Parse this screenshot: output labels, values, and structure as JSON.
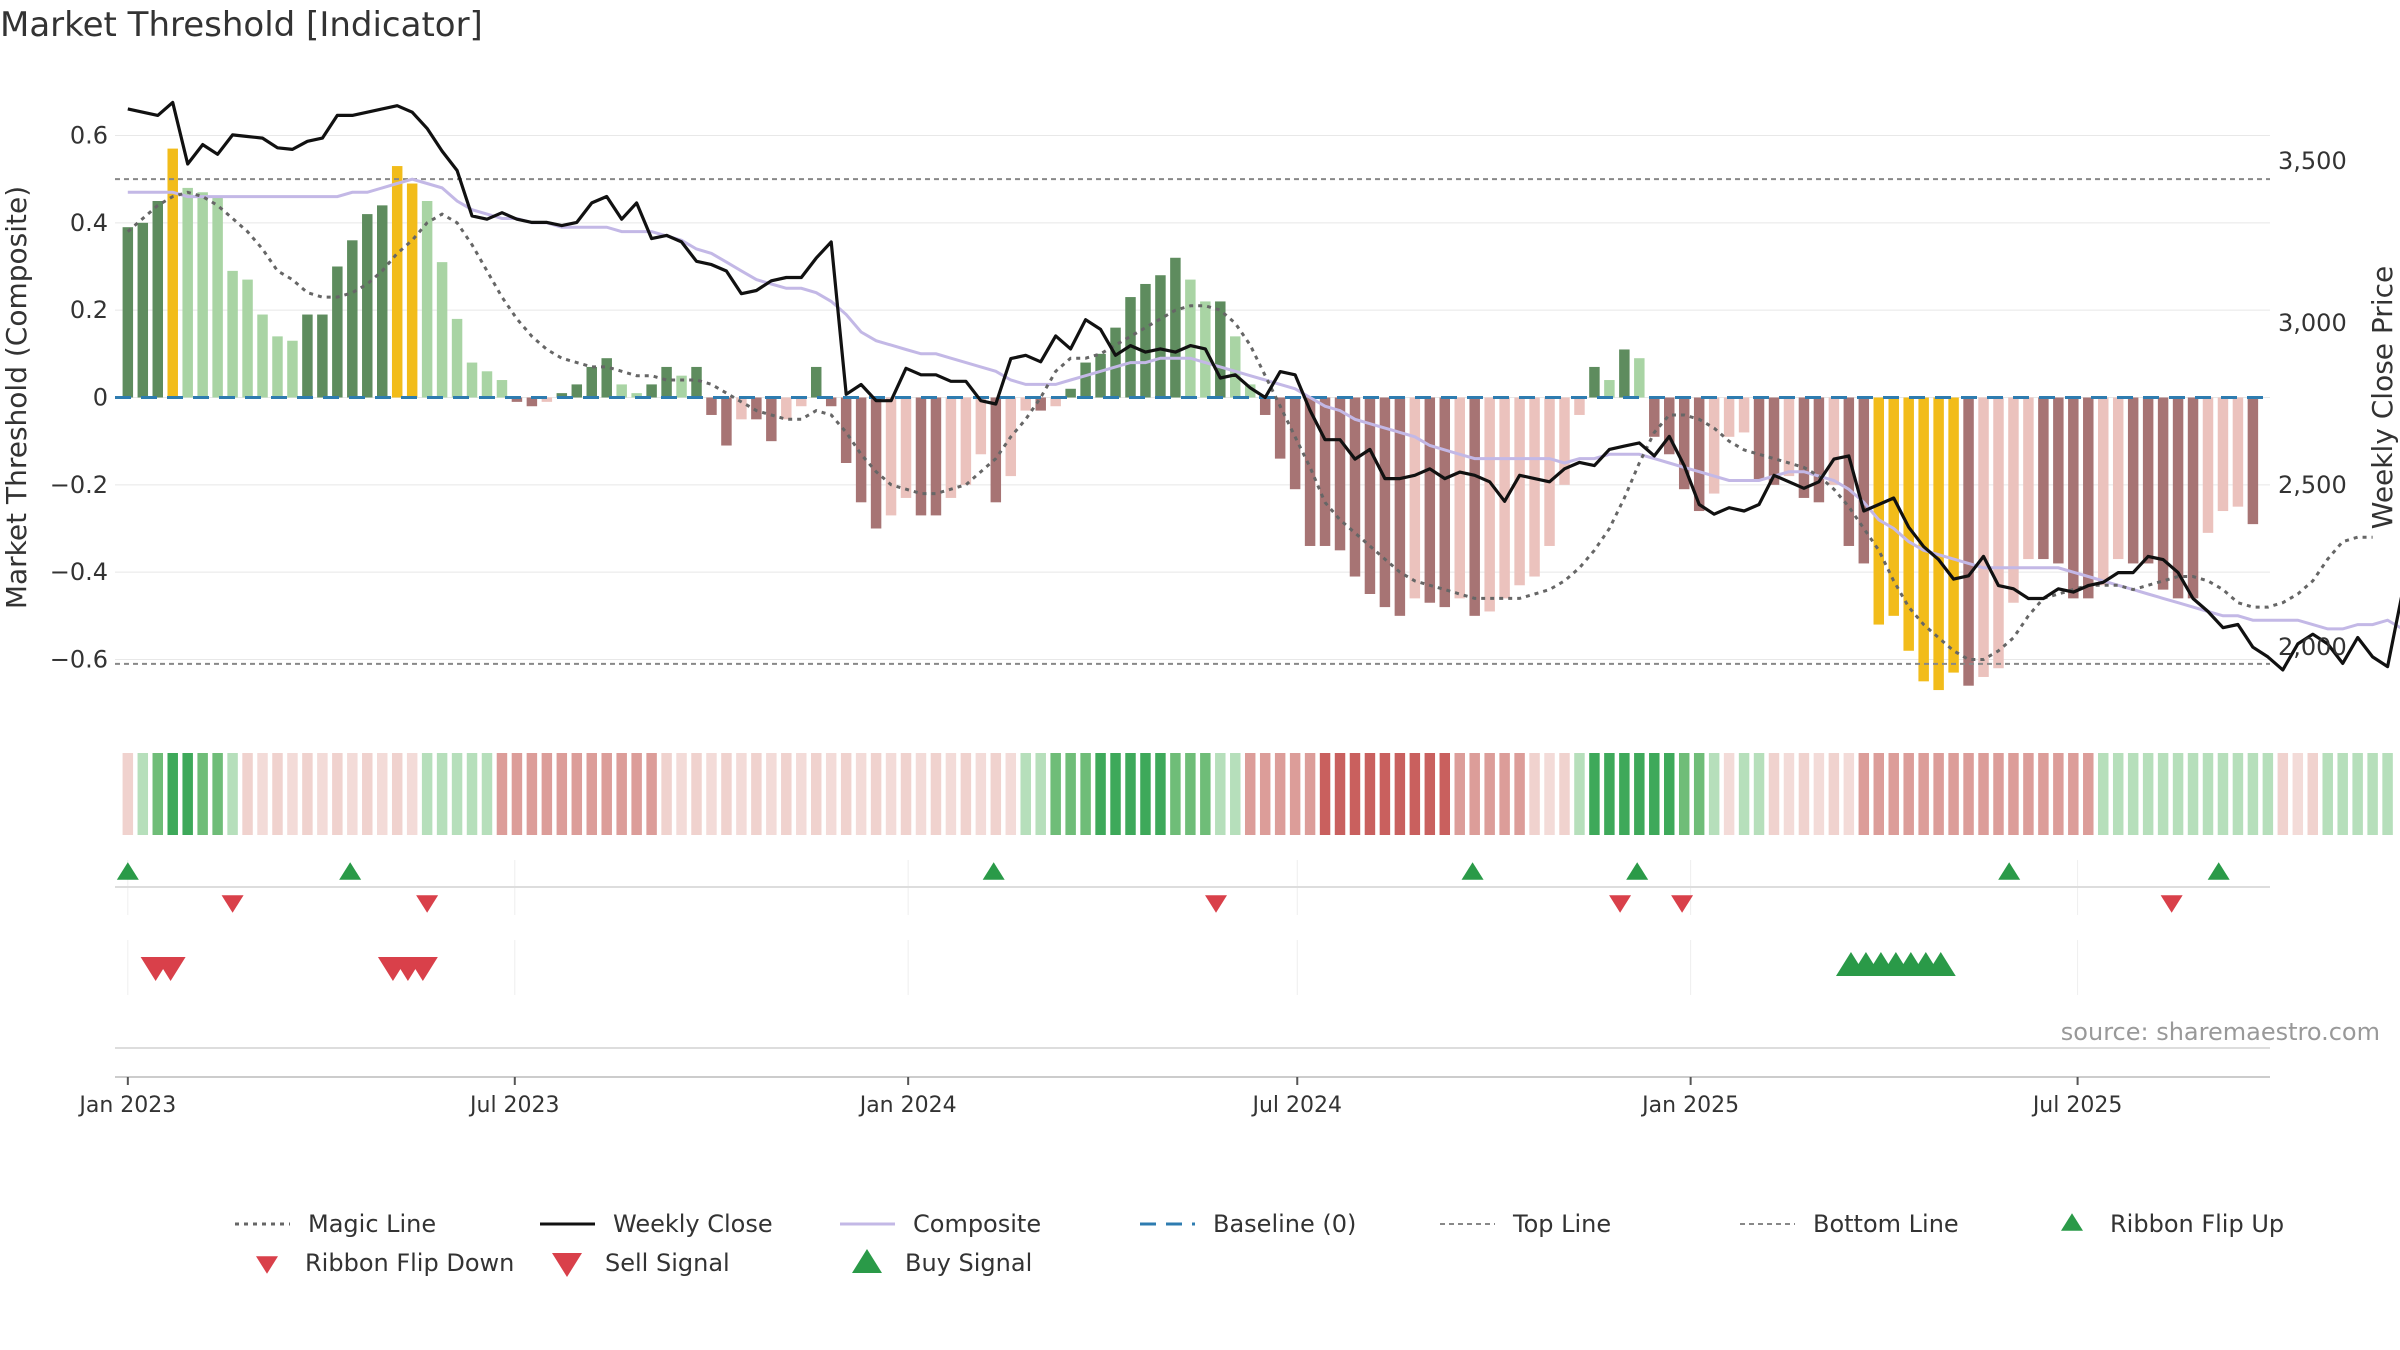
{
  "title": "Market Threshold [Indicator]",
  "source": "source: sharemaestro.com",
  "colors": {
    "hist_dark_pos": "#5e8c5e",
    "hist_light_pos": "#a9d4a4",
    "hist_dark_neg": "#a77474",
    "hist_light_neg": "#ebc2bd",
    "hist_extreme": "#f2bc1a",
    "close": "#111111",
    "composite": "#c3b8e6",
    "magic": "#666666",
    "baseline": "#2e7cb0",
    "threshold": "#888888",
    "buy": "#2a9a48",
    "sell": "#d9404a"
  },
  "chart_data": {
    "type": "bar",
    "x_axis": {
      "type": "date",
      "range": [
        "2022-12-26",
        "2025-09-29"
      ],
      "ticks": [
        {
          "date": "2023-01-01",
          "label": "Jan 2023"
        },
        {
          "date": "2023-07-01",
          "label": "Jul 2023"
        },
        {
          "date": "2024-01-01",
          "label": "Jan 2024"
        },
        {
          "date": "2024-07-01",
          "label": "Jul 2024"
        },
        {
          "date": "2025-01-01",
          "label": "Jan 2025"
        },
        {
          "date": "2025-07-01",
          "label": "Jul 2025"
        }
      ]
    },
    "weeks": {
      "start": "2023-01-01",
      "interval_days": 7
    },
    "y_left": {
      "label": "Market Threshold (Composite)",
      "range": [
        -0.75,
        0.75
      ],
      "ticks": [
        0.6,
        0.4,
        0.2,
        0,
        -0.2,
        -0.4,
        -0.6
      ],
      "tick_labels": [
        "0.6",
        "0.4",
        "0.2",
        "0",
        "−0.2",
        "−0.4",
        "−0.6"
      ]
    },
    "y_right": {
      "label": "Weekly Close Price",
      "range": [
        1760,
        3780
      ],
      "ticks": [
        3500,
        3000,
        2500,
        2000
      ],
      "tick_labels": [
        "3,500",
        "3,000",
        "2,500",
        "2,000"
      ]
    },
    "top_line": 0.5,
    "bottom_line": -0.61,
    "histogram": [
      0.39,
      0.4,
      0.45,
      0.57,
      0.48,
      0.47,
      0.46,
      0.29,
      0.27,
      0.19,
      0.14,
      0.13,
      0.19,
      0.19,
      0.3,
      0.36,
      0.42,
      0.44,
      0.53,
      0.49,
      0.45,
      0.31,
      0.18,
      0.08,
      0.06,
      0.04,
      -0.01,
      -0.02,
      -0.01,
      0.01,
      0.03,
      0.07,
      0.09,
      0.03,
      0.01,
      0.03,
      0.07,
      0.05,
      0.07,
      -0.04,
      -0.11,
      -0.05,
      -0.05,
      -0.1,
      -0.05,
      -0.02,
      0.07,
      -0.02,
      -0.15,
      -0.24,
      -0.3,
      -0.27,
      -0.23,
      -0.27,
      -0.27,
      -0.23,
      -0.2,
      -0.13,
      -0.24,
      -0.18,
      -0.03,
      -0.03,
      -0.02,
      0.02,
      0.08,
      0.1,
      0.16,
      0.23,
      0.26,
      0.28,
      0.32,
      0.27,
      0.22,
      0.22,
      0.14,
      0.03,
      -0.04,
      -0.14,
      -0.21,
      -0.34,
      -0.34,
      -0.35,
      -0.41,
      -0.45,
      -0.48,
      -0.5,
      -0.46,
      -0.47,
      -0.48,
      -0.46,
      -0.5,
      -0.49,
      -0.46,
      -0.43,
      -0.41,
      -0.34,
      -0.2,
      -0.04,
      0.07,
      0.04,
      0.11,
      0.09,
      -0.09,
      -0.13,
      -0.21,
      -0.26,
      -0.22,
      -0.09,
      -0.08,
      -0.19,
      -0.2,
      -0.18,
      -0.23,
      -0.24,
      -0.2,
      -0.34,
      -0.38,
      -0.52,
      -0.5,
      -0.58,
      -0.65,
      -0.67,
      -0.63,
      -0.66,
      -0.64,
      -0.62,
      -0.47,
      -0.37,
      -0.37,
      -0.38,
      -0.46,
      -0.46,
      -0.43,
      -0.37,
      -0.38,
      -0.38,
      -0.44,
      -0.46,
      -0.46,
      -0.31,
      -0.26,
      -0.25,
      -0.29
    ],
    "histogram_highlight_indices": [
      3,
      18,
      19,
      117,
      118,
      119,
      120,
      121,
      122
    ],
    "weekly_close": [
      3660,
      3650,
      3640,
      3680,
      3490,
      3550,
      3520,
      3580,
      3575,
      3570,
      3540,
      3535,
      3560,
      3570,
      3640,
      3640,
      3650,
      3660,
      3670,
      3650,
      3600,
      3530,
      3470,
      3330,
      3320,
      3340,
      3320,
      3310,
      3310,
      3300,
      3310,
      3370,
      3390,
      3320,
      3370,
      3260,
      3270,
      3250,
      3190,
      3180,
      3160,
      3090,
      3100,
      3130,
      3140,
      3140,
      3200,
      3250,
      2780,
      2810,
      2760,
      2760,
      2860,
      2840,
      2840,
      2820,
      2820,
      2760,
      2750,
      2890,
      2900,
      2880,
      2960,
      2920,
      3010,
      2980,
      2900,
      2930,
      2910,
      2920,
      2910,
      2930,
      2920,
      2830,
      2840,
      2800,
      2770,
      2850,
      2840,
      2730,
      2640,
      2640,
      2580,
      2610,
      2520,
      2520,
      2530,
      2550,
      2520,
      2540,
      2530,
      2510,
      2450,
      2530,
      2520,
      2510,
      2550,
      2570,
      2560,
      2610,
      2620,
      2630,
      2590,
      2650,
      2560,
      2440,
      2410,
      2430,
      2420,
      2440,
      2530,
      2510,
      2490,
      2510,
      2580,
      2590,
      2420,
      2440,
      2460,
      2370,
      2310,
      2270,
      2210,
      2220,
      2280,
      2190,
      2180,
      2150,
      2150,
      2180,
      2170,
      2190,
      2200,
      2230,
      2230,
      2280,
      2270,
      2230,
      2150,
      2110,
      2060,
      2070,
      2000,
      1970,
      1930,
      2010,
      2040,
      2010,
      1950,
      2030,
      1970,
      1940,
      2170,
      2180,
      2210,
      2200,
      2180,
      1920,
      1880
    ],
    "composite": [
      0.47,
      0.47,
      0.47,
      0.47,
      0.46,
      0.46,
      0.46,
      0.46,
      0.46,
      0.46,
      0.46,
      0.46,
      0.46,
      0.46,
      0.46,
      0.47,
      0.47,
      0.48,
      0.49,
      0.5,
      0.49,
      0.48,
      0.45,
      0.43,
      0.42,
      0.41,
      0.41,
      0.4,
      0.4,
      0.39,
      0.39,
      0.39,
      0.39,
      0.38,
      0.38,
      0.38,
      0.37,
      0.36,
      0.34,
      0.33,
      0.31,
      0.29,
      0.27,
      0.26,
      0.25,
      0.25,
      0.24,
      0.22,
      0.19,
      0.15,
      0.13,
      0.12,
      0.11,
      0.1,
      0.1,
      0.09,
      0.08,
      0.07,
      0.06,
      0.04,
      0.03,
      0.03,
      0.03,
      0.04,
      0.05,
      0.06,
      0.07,
      0.08,
      0.08,
      0.09,
      0.09,
      0.09,
      0.08,
      0.07,
      0.06,
      0.05,
      0.04,
      0.03,
      0.02,
      0.0,
      -0.02,
      -0.03,
      -0.05,
      -0.06,
      -0.07,
      -0.08,
      -0.09,
      -0.11,
      -0.12,
      -0.13,
      -0.14,
      -0.14,
      -0.14,
      -0.14,
      -0.14,
      -0.14,
      -0.15,
      -0.14,
      -0.14,
      -0.13,
      -0.13,
      -0.13,
      -0.14,
      -0.15,
      -0.16,
      -0.17,
      -0.18,
      -0.19,
      -0.19,
      -0.19,
      -0.18,
      -0.17,
      -0.17,
      -0.18,
      -0.19,
      -0.21,
      -0.24,
      -0.28,
      -0.3,
      -0.33,
      -0.35,
      -0.36,
      -0.37,
      -0.38,
      -0.39,
      -0.39,
      -0.39,
      -0.39,
      -0.39,
      -0.39,
      -0.4,
      -0.41,
      -0.42,
      -0.43,
      -0.44,
      -0.45,
      -0.46,
      -0.47,
      -0.48,
      -0.49,
      -0.5,
      -0.5,
      -0.51,
      -0.51,
      -0.51,
      -0.51,
      -0.52,
      -0.53,
      -0.53,
      -0.52,
      -0.52,
      -0.51,
      -0.53
    ],
    "magic_line": [
      0.38,
      0.41,
      0.44,
      0.46,
      0.47,
      0.46,
      0.44,
      0.41,
      0.38,
      0.34,
      0.29,
      0.27,
      0.24,
      0.23,
      0.23,
      0.24,
      0.26,
      0.29,
      0.33,
      0.36,
      0.4,
      0.42,
      0.4,
      0.35,
      0.29,
      0.23,
      0.18,
      0.14,
      0.11,
      0.09,
      0.08,
      0.07,
      0.07,
      0.06,
      0.05,
      0.05,
      0.04,
      0.04,
      0.04,
      0.03,
      0.01,
      -0.01,
      -0.03,
      -0.04,
      -0.05,
      -0.05,
      -0.03,
      -0.04,
      -0.08,
      -0.13,
      -0.17,
      -0.2,
      -0.21,
      -0.22,
      -0.22,
      -0.21,
      -0.2,
      -0.17,
      -0.14,
      -0.09,
      -0.05,
      0.0,
      0.06,
      0.09,
      0.09,
      0.1,
      0.12,
      0.14,
      0.16,
      0.18,
      0.2,
      0.21,
      0.21,
      0.2,
      0.17,
      0.12,
      0.05,
      -0.02,
      -0.09,
      -0.16,
      -0.24,
      -0.28,
      -0.31,
      -0.34,
      -0.37,
      -0.4,
      -0.42,
      -0.43,
      -0.44,
      -0.45,
      -0.46,
      -0.46,
      -0.46,
      -0.46,
      -0.45,
      -0.44,
      -0.42,
      -0.39,
      -0.35,
      -0.3,
      -0.23,
      -0.15,
      -0.08,
      -0.04,
      -0.04,
      -0.05,
      -0.07,
      -0.1,
      -0.12,
      -0.13,
      -0.14,
      -0.15,
      -0.16,
      -0.18,
      -0.21,
      -0.25,
      -0.3,
      -0.35,
      -0.42,
      -0.48,
      -0.52,
      -0.55,
      -0.58,
      -0.6,
      -0.6,
      -0.58,
      -0.55,
      -0.5,
      -0.46,
      -0.45,
      -0.44,
      -0.43,
      -0.43,
      -0.43,
      -0.44,
      -0.43,
      -0.42,
      -0.41,
      -0.41,
      -0.42,
      -0.44,
      -0.47,
      -0.48,
      -0.48,
      -0.47,
      -0.45,
      -0.42,
      -0.37,
      -0.33,
      -0.32,
      -0.32
    ],
    "ribbon": [
      -1,
      1,
      2,
      3,
      3,
      2,
      2,
      1,
      -1,
      -1,
      -1,
      -1,
      -1,
      -1,
      -1,
      -1,
      -1,
      -1,
      -1,
      -1,
      1,
      1,
      1,
      1,
      1,
      -2,
      -2,
      -2,
      -2,
      -2,
      -2,
      -2,
      -2,
      -2,
      -2,
      -2,
      -1,
      -1,
      -1,
      -1,
      -1,
      -1,
      -1,
      -1,
      -1,
      -1,
      -1,
      -1,
      -1,
      -1,
      -1,
      -1,
      -1,
      -1,
      -1,
      -1,
      -1,
      -1,
      -1,
      -1,
      1,
      1,
      2,
      2,
      2,
      3,
      3,
      3,
      3,
      3,
      2,
      2,
      2,
      1,
      1,
      -2,
      -2,
      -2,
      -2,
      -2,
      -3,
      -3,
      -3,
      -3,
      -3,
      -3,
      -3,
      -3,
      -3,
      -2,
      -2,
      -2,
      -2,
      -2,
      -1,
      -1,
      -1,
      1,
      3,
      3,
      3,
      3,
      3,
      3,
      2,
      2,
      1,
      -1,
      1,
      1,
      -1,
      -1,
      -1,
      -1,
      -1,
      -1,
      -2,
      -2,
      -2,
      -2,
      -2,
      -2,
      -2,
      -2,
      -2,
      -2,
      -2,
      -2,
      -2,
      -2,
      -2,
      -2,
      1,
      1,
      1,
      1,
      1,
      1,
      1,
      1,
      1,
      1,
      1,
      1,
      -1,
      -1,
      -1,
      1,
      1,
      1,
      1,
      1
    ],
    "ribbon_flip_up": [
      "2023-01-01",
      "2023-04-15",
      "2024-02-10",
      "2024-09-21",
      "2024-12-07",
      "2025-05-30",
      "2025-09-05"
    ],
    "ribbon_flip_down": [
      "2023-02-19",
      "2023-05-21",
      "2024-05-24",
      "2024-11-29",
      "2024-12-28",
      "2025-08-14"
    ],
    "sell_signal": [
      "2023-01-14",
      "2023-01-21",
      "2023-05-05",
      "2023-05-12",
      "2023-05-19"
    ],
    "buy_signal": [
      "2025-03-17",
      "2025-03-24",
      "2025-03-31",
      "2025-04-07",
      "2025-04-14",
      "2025-04-21",
      "2025-04-28"
    ],
    "legend": [
      {
        "key": "magic",
        "label": "Magic Line"
      },
      {
        "key": "close",
        "label": "Weekly Close"
      },
      {
        "key": "composite",
        "label": "Composite"
      },
      {
        "key": "baseline",
        "label": "Baseline (0)"
      },
      {
        "key": "top",
        "label": "Top Line"
      },
      {
        "key": "bottom",
        "label": "Bottom Line"
      },
      {
        "key": "flipup",
        "label": "Ribbon Flip Up"
      },
      {
        "key": "flipdown",
        "label": "Ribbon Flip Down"
      },
      {
        "key": "sell",
        "label": "Sell Signal"
      },
      {
        "key": "buy",
        "label": "Buy Signal"
      }
    ]
  }
}
